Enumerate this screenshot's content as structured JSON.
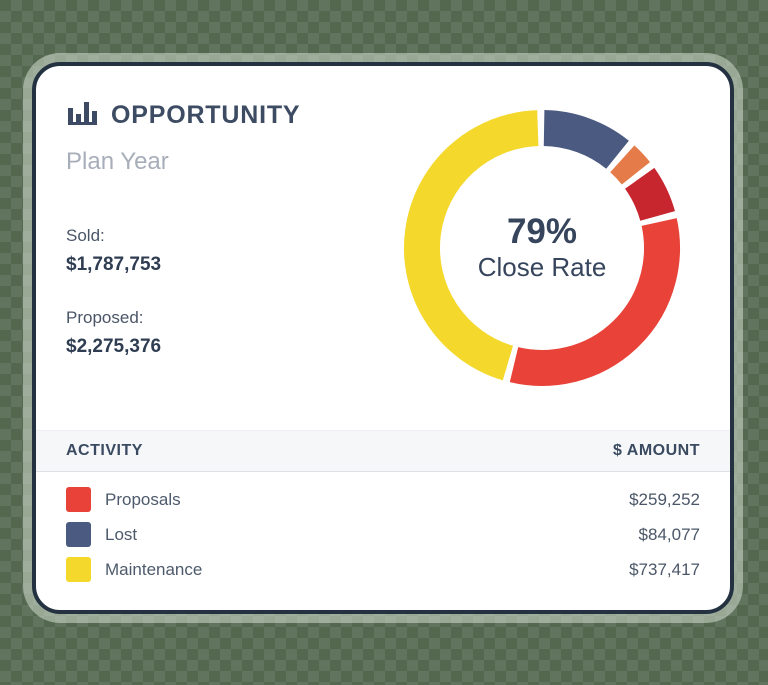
{
  "background": {
    "base_color": "#54684f",
    "checker_color": "rgba(255,255,255,0.08)"
  },
  "card": {
    "border_color": "#233140",
    "header": {
      "title": "OPPORTUNITY",
      "subtitle": "Plan Year",
      "icon": "bar-chart-icon",
      "title_color": "#3d4c63"
    },
    "stats": [
      {
        "label": "Sold:",
        "value": "$1,787,753"
      },
      {
        "label": "Proposed:",
        "value": "$2,275,376"
      }
    ],
    "donut_center": {
      "percent": "79%",
      "caption": "Close Rate"
    },
    "table": {
      "headers": {
        "activity": "ACTIVITY",
        "amount": "$ AMOUNT"
      },
      "rows": [
        {
          "color": "#e84239",
          "label": "Proposals",
          "amount": "$259,252"
        },
        {
          "color": "#4a5a80",
          "label": "Lost",
          "amount": "$84,077"
        },
        {
          "color": "#f4d82c",
          "label": "Maintenance",
          "amount": "$737,417"
        }
      ]
    }
  },
  "chart_data": {
    "type": "pie",
    "title": "Opportunity Plan Year donut",
    "center_label": "79% Close Rate",
    "legend_position": "bottom-table",
    "donut_hole_ratio": 0.74,
    "segments": [
      {
        "name": "lost",
        "color": "#4a5a80",
        "start_deg": 1.0,
        "end_deg": 39.0,
        "approx_pct": 10.6
      },
      {
        "name": "segment-orange",
        "color": "#e57b49",
        "start_deg": 42.0,
        "end_deg": 51.5,
        "approx_pct": 2.6
      },
      {
        "name": "segment-dark-red",
        "color": "#c7262f",
        "start_deg": 54.5,
        "end_deg": 74.5,
        "approx_pct": 5.6
      },
      {
        "name": "proposals",
        "color": "#e84239",
        "start_deg": 77.5,
        "end_deg": 193.5,
        "approx_pct": 32.2
      },
      {
        "name": "maintenance",
        "color": "#f4d82c",
        "start_deg": 196.5,
        "end_deg": 358.0,
        "approx_pct": 44.9
      }
    ]
  }
}
